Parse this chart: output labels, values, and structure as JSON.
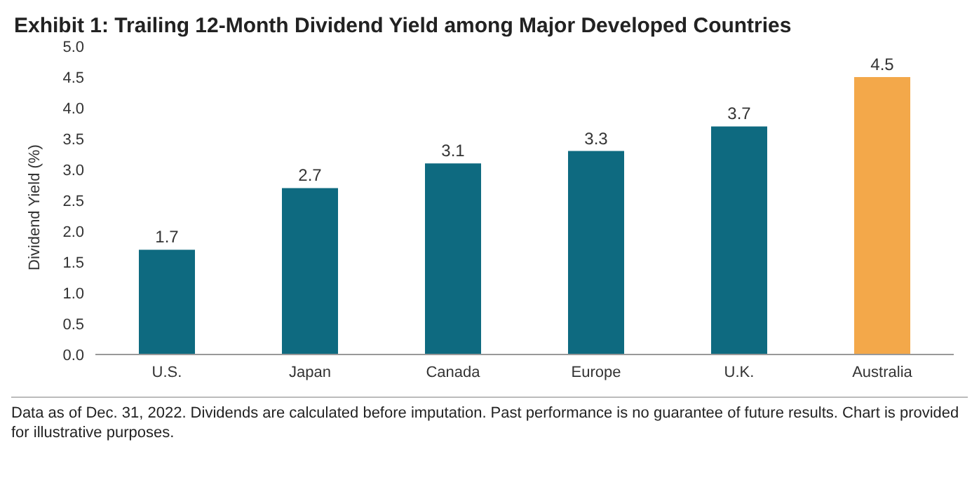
{
  "chart_data": {
    "type": "bar",
    "title": "Exhibit 1: Trailing 12-Month Dividend Yield among Major Developed Countries",
    "ylabel": "Dividend Yield (%)",
    "categories": [
      "U.S.",
      "Japan",
      "Canada",
      "Europe",
      "U.K.",
      "Australia"
    ],
    "values": [
      1.7,
      2.7,
      3.1,
      3.3,
      3.7,
      4.5
    ],
    "colors": [
      "#0e6a80",
      "#0e6a80",
      "#0e6a80",
      "#0e6a80",
      "#0e6a80",
      "#f3a84a"
    ],
    "data_labels": true,
    "ylim": [
      0,
      5
    ],
    "yticks": [
      {
        "value": 0,
        "label": "0.0"
      },
      {
        "value": 0.5,
        "label": "0.5"
      },
      {
        "value": 1,
        "label": "1.0"
      },
      {
        "value": 1.5,
        "label": "1.5"
      },
      {
        "value": 2,
        "label": "2.0"
      },
      {
        "value": 2.5,
        "label": "2.5"
      },
      {
        "value": 3,
        "label": "3.0"
      },
      {
        "value": 3.5,
        "label": "3.5"
      },
      {
        "value": 4,
        "label": "4.0"
      },
      {
        "value": 4.5,
        "label": "4.5"
      },
      {
        "value": 5,
        "label": "5.0"
      }
    ],
    "grid": false,
    "legend": false,
    "annotations": [
      "Data as of Dec. 31, 2022.  Dividends are calculated before imputation.  Past performance is no guarantee of future results.  Chart is provided for illustrative purposes."
    ]
  }
}
